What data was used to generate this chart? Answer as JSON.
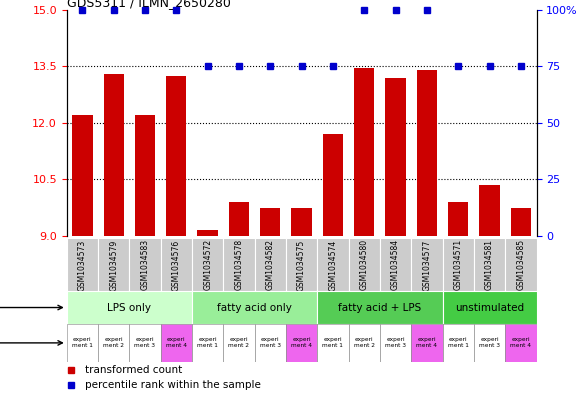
{
  "title": "GDS5311 / ILMN_2650280",
  "samples": [
    "GSM1034573",
    "GSM1034579",
    "GSM1034583",
    "GSM1034576",
    "GSM1034572",
    "GSM1034578",
    "GSM1034582",
    "GSM1034575",
    "GSM1034574",
    "GSM1034580",
    "GSM1034584",
    "GSM1034577",
    "GSM1034571",
    "GSM1034581",
    "GSM1034585"
  ],
  "transformed_count": [
    12.2,
    13.3,
    12.2,
    13.25,
    9.15,
    9.9,
    9.75,
    9.75,
    11.7,
    13.45,
    13.2,
    13.4,
    9.9,
    10.35,
    9.75
  ],
  "percentile_rank": [
    100,
    100,
    100,
    100,
    75,
    75,
    75,
    75,
    75,
    100,
    100,
    100,
    75,
    75,
    75
  ],
  "ylim_left": [
    9,
    15
  ],
  "ylim_right": [
    0,
    100
  ],
  "yticks_left": [
    9,
    10.5,
    12,
    13.5,
    15
  ],
  "yticks_right": [
    0,
    25,
    50,
    75,
    100
  ],
  "bar_color": "#cc0000",
  "dot_color": "#0000cc",
  "protocol_groups": [
    {
      "label": "LPS only",
      "start": 0,
      "end": 4,
      "color": "#ccffcc"
    },
    {
      "label": "fatty acid only",
      "start": 4,
      "end": 8,
      "color": "#99ee99"
    },
    {
      "label": "fatty acid + LPS",
      "start": 8,
      "end": 12,
      "color": "#55cc55"
    },
    {
      "label": "unstimulated",
      "start": 12,
      "end": 15,
      "color": "#44cc44"
    }
  ],
  "other_colors": [
    "#ffffff",
    "#ffffff",
    "#ffffff",
    "#ee66ee",
    "#ffffff",
    "#ffffff",
    "#ffffff",
    "#ee66ee",
    "#ffffff",
    "#ffffff",
    "#ffffff",
    "#ee66ee",
    "#ffffff",
    "#ffffff",
    "#ee66ee"
  ],
  "other_labels": [
    "experi\nment 1",
    "experi\nment 2",
    "experi\nment 3",
    "experi\nment 4",
    "experi\nment 1",
    "experi\nment 2",
    "experi\nment 3",
    "experi\nment 4",
    "experi\nment 1",
    "experi\nment 2",
    "experi\nment 3",
    "experi\nment 4",
    "experi\nment 1",
    "experi\nment 3",
    "experi\nment 4"
  ],
  "legend_bar_color": "#cc0000",
  "legend_dot_color": "#0000cc",
  "legend_bar_label": "transformed count",
  "legend_dot_label": "percentile rank within the sample",
  "sample_bg_color": "#cccccc",
  "bg_color": "#ffffff"
}
